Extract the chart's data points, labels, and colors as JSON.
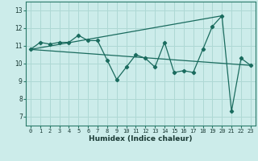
{
  "xlabel": "Humidex (Indice chaleur)",
  "ylabel": "",
  "background_color": "#ccecea",
  "grid_color": "#aed8d4",
  "line_color": "#1a6b5e",
  "xlim": [
    -0.5,
    23.5
  ],
  "ylim": [
    6.5,
    13.5
  ],
  "xticks": [
    0,
    1,
    2,
    3,
    4,
    5,
    6,
    7,
    8,
    9,
    10,
    11,
    12,
    13,
    14,
    15,
    16,
    17,
    18,
    19,
    20,
    21,
    22,
    23
  ],
  "yticks": [
    7,
    8,
    9,
    10,
    11,
    12,
    13
  ],
  "series1": [
    10.8,
    11.2,
    11.1,
    11.2,
    11.2,
    11.6,
    11.3,
    11.3,
    10.2,
    9.1,
    9.8,
    10.5,
    10.3,
    9.8,
    11.2,
    9.5,
    9.6,
    9.5,
    10.8,
    12.1,
    12.7,
    7.3,
    10.3,
    9.9
  ],
  "series3_x": [
    0,
    23
  ],
  "series3_y": [
    10.8,
    9.9
  ],
  "series4_x": [
    0,
    20
  ],
  "series4_y": [
    10.8,
    12.7
  ]
}
